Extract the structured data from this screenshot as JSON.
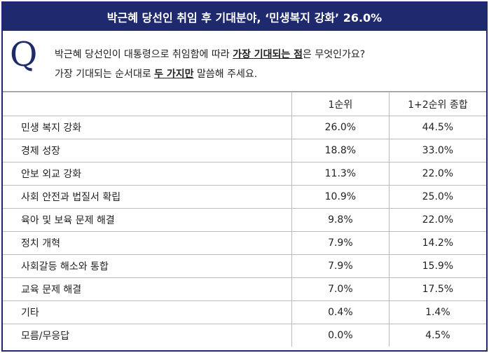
{
  "header": {
    "title": "박근혜 당선인 취임 후 기대분야, ‘민생복지 강화’ 26.0%"
  },
  "question": {
    "mark": "Q",
    "lines": [
      [
        {
          "text": "박근혜 당선인이 대통령으로 취임함에 따라 ",
          "strong": false
        },
        {
          "text": "가장 기대되는 점",
          "strong": true
        },
        {
          "text": "은 무엇인가요?",
          "strong": false
        }
      ],
      [
        {
          "text": "가장 기대되는 순서대로 ",
          "strong": false
        },
        {
          "text": "두 가지만",
          "strong": true
        },
        {
          "text": " 말씀해 주세요.",
          "strong": false
        }
      ]
    ]
  },
  "table": {
    "columns": [
      "1순위",
      "1+2순위 종합"
    ],
    "rows": [
      [
        "민생 복지 강화",
        "26.0%",
        "44.5%"
      ],
      [
        "경제 성장",
        "18.8%",
        "33.0%"
      ],
      [
        "안보 외교 강화",
        "11.3%",
        "22.0%"
      ],
      [
        "사회 안전과 법질서 확립",
        "10.9%",
        "25.0%"
      ],
      [
        "육아 및 보육 문제 해결",
        "9.8%",
        "22.0%"
      ],
      [
        "정치 개혁",
        "7.9%",
        "14.2%"
      ],
      [
        "사회갈등 해소와 통합",
        "7.9%",
        "15.9%"
      ],
      [
        "교육 문제 해결",
        "7.0%",
        "17.5%"
      ],
      [
        "기타",
        "0.4%",
        "1.4%"
      ],
      [
        "모름/무응답",
        "0.0%",
        "4.5%"
      ]
    ]
  }
}
